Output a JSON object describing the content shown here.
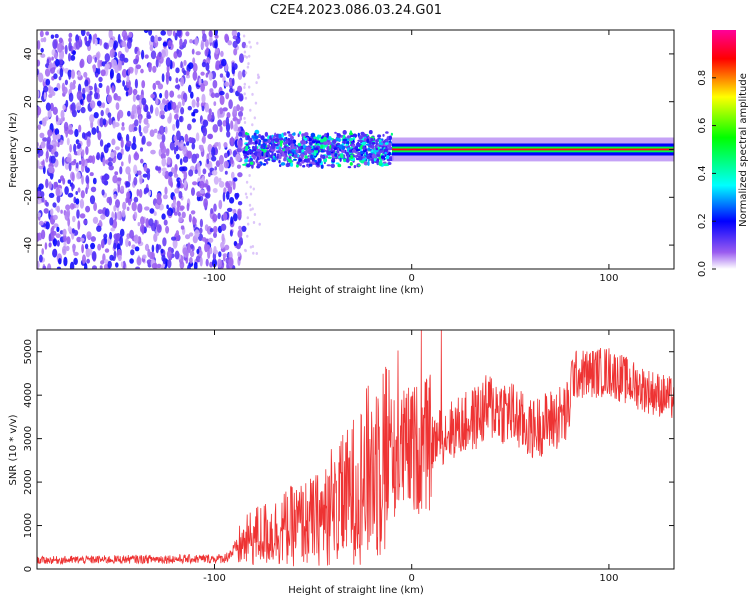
{
  "title": "C2E4.2023.086.03.24.G01",
  "colors": {
    "snr_line": "#ee3333",
    "axis": "#111111",
    "colorbar": [
      "#ffffff",
      "#8a2be2",
      "#0000ff",
      "#00ffff",
      "#00ff00",
      "#ffff00",
      "#ff0000",
      "#ff00aa"
    ]
  },
  "chart_data": [
    {
      "type": "heatmap",
      "title": "",
      "xlabel": "Height of straight line (km)",
      "ylabel": "Frequency (Hz)",
      "xlim": [
        -190,
        133
      ],
      "ylim": [
        -50,
        50
      ],
      "x_ticks": [
        -100,
        0,
        100
      ],
      "x_tick_labels": [
        "-100",
        "0",
        "100"
      ],
      "y_ticks": [
        -40,
        -20,
        0,
        20,
        40
      ],
      "y_tick_labels": [
        "-40",
        "-20",
        "0",
        "20",
        "40"
      ],
      "colorbar": {
        "label": "Normalized spectral amplitude",
        "range": [
          0,
          1
        ],
        "ticks": [
          0.0,
          0.2,
          0.4,
          0.6,
          0.8
        ],
        "tick_labels": [
          "0.0",
          "0.2",
          "0.4",
          "0.6",
          "0.8"
        ]
      },
      "regions": [
        {
          "description": "broadband noise",
          "x_range": [
            -190,
            -85
          ],
          "freq_range": [
            -50,
            50
          ],
          "amplitude": 0.1
        },
        {
          "description": "spreading signal near 0 Hz",
          "x_range": [
            -85,
            -10
          ],
          "freq_range": [
            -8,
            8
          ],
          "amplitude": 0.4
        },
        {
          "description": "narrow strong carrier",
          "x_range": [
            -10,
            133
          ],
          "freq_range": [
            -2,
            2
          ],
          "amplitude": 0.9
        }
      ]
    },
    {
      "type": "line",
      "title": "",
      "xlabel": "Height of straight line (km)",
      "ylabel": "SNR (10 * v/v)",
      "xlim": [
        -190,
        133
      ],
      "ylim": [
        0,
        5500
      ],
      "x_ticks": [
        -100,
        0,
        100
      ],
      "x_tick_labels": [
        "-100",
        "0",
        "100"
      ],
      "y_ticks": [
        0,
        1000,
        2000,
        3000,
        4000,
        5000
      ],
      "y_tick_labels": [
        "0",
        "1000",
        "2000",
        "3000",
        "4000",
        "5000"
      ],
      "series": [
        {
          "name": "",
          "x": [
            -190,
            -170,
            -150,
            -130,
            -110,
            -95,
            -88,
            -80,
            -70,
            -60,
            -50,
            -40,
            -30,
            -20,
            -15,
            -10,
            -5,
            0,
            5,
            10,
            20,
            30,
            40,
            50,
            60,
            70,
            80,
            81,
            90,
            100,
            110,
            120,
            133
          ],
          "y": [
            200,
            210,
            220,
            230,
            230,
            240,
            500,
            750,
            850,
            1000,
            1100,
            1300,
            1800,
            2300,
            2700,
            2550,
            2700,
            2750,
            2800,
            2900,
            3200,
            3400,
            3750,
            3600,
            3200,
            3400,
            3600,
            4450,
            4500,
            4550,
            4300,
            4100,
            3900
          ]
        }
      ]
    }
  ]
}
